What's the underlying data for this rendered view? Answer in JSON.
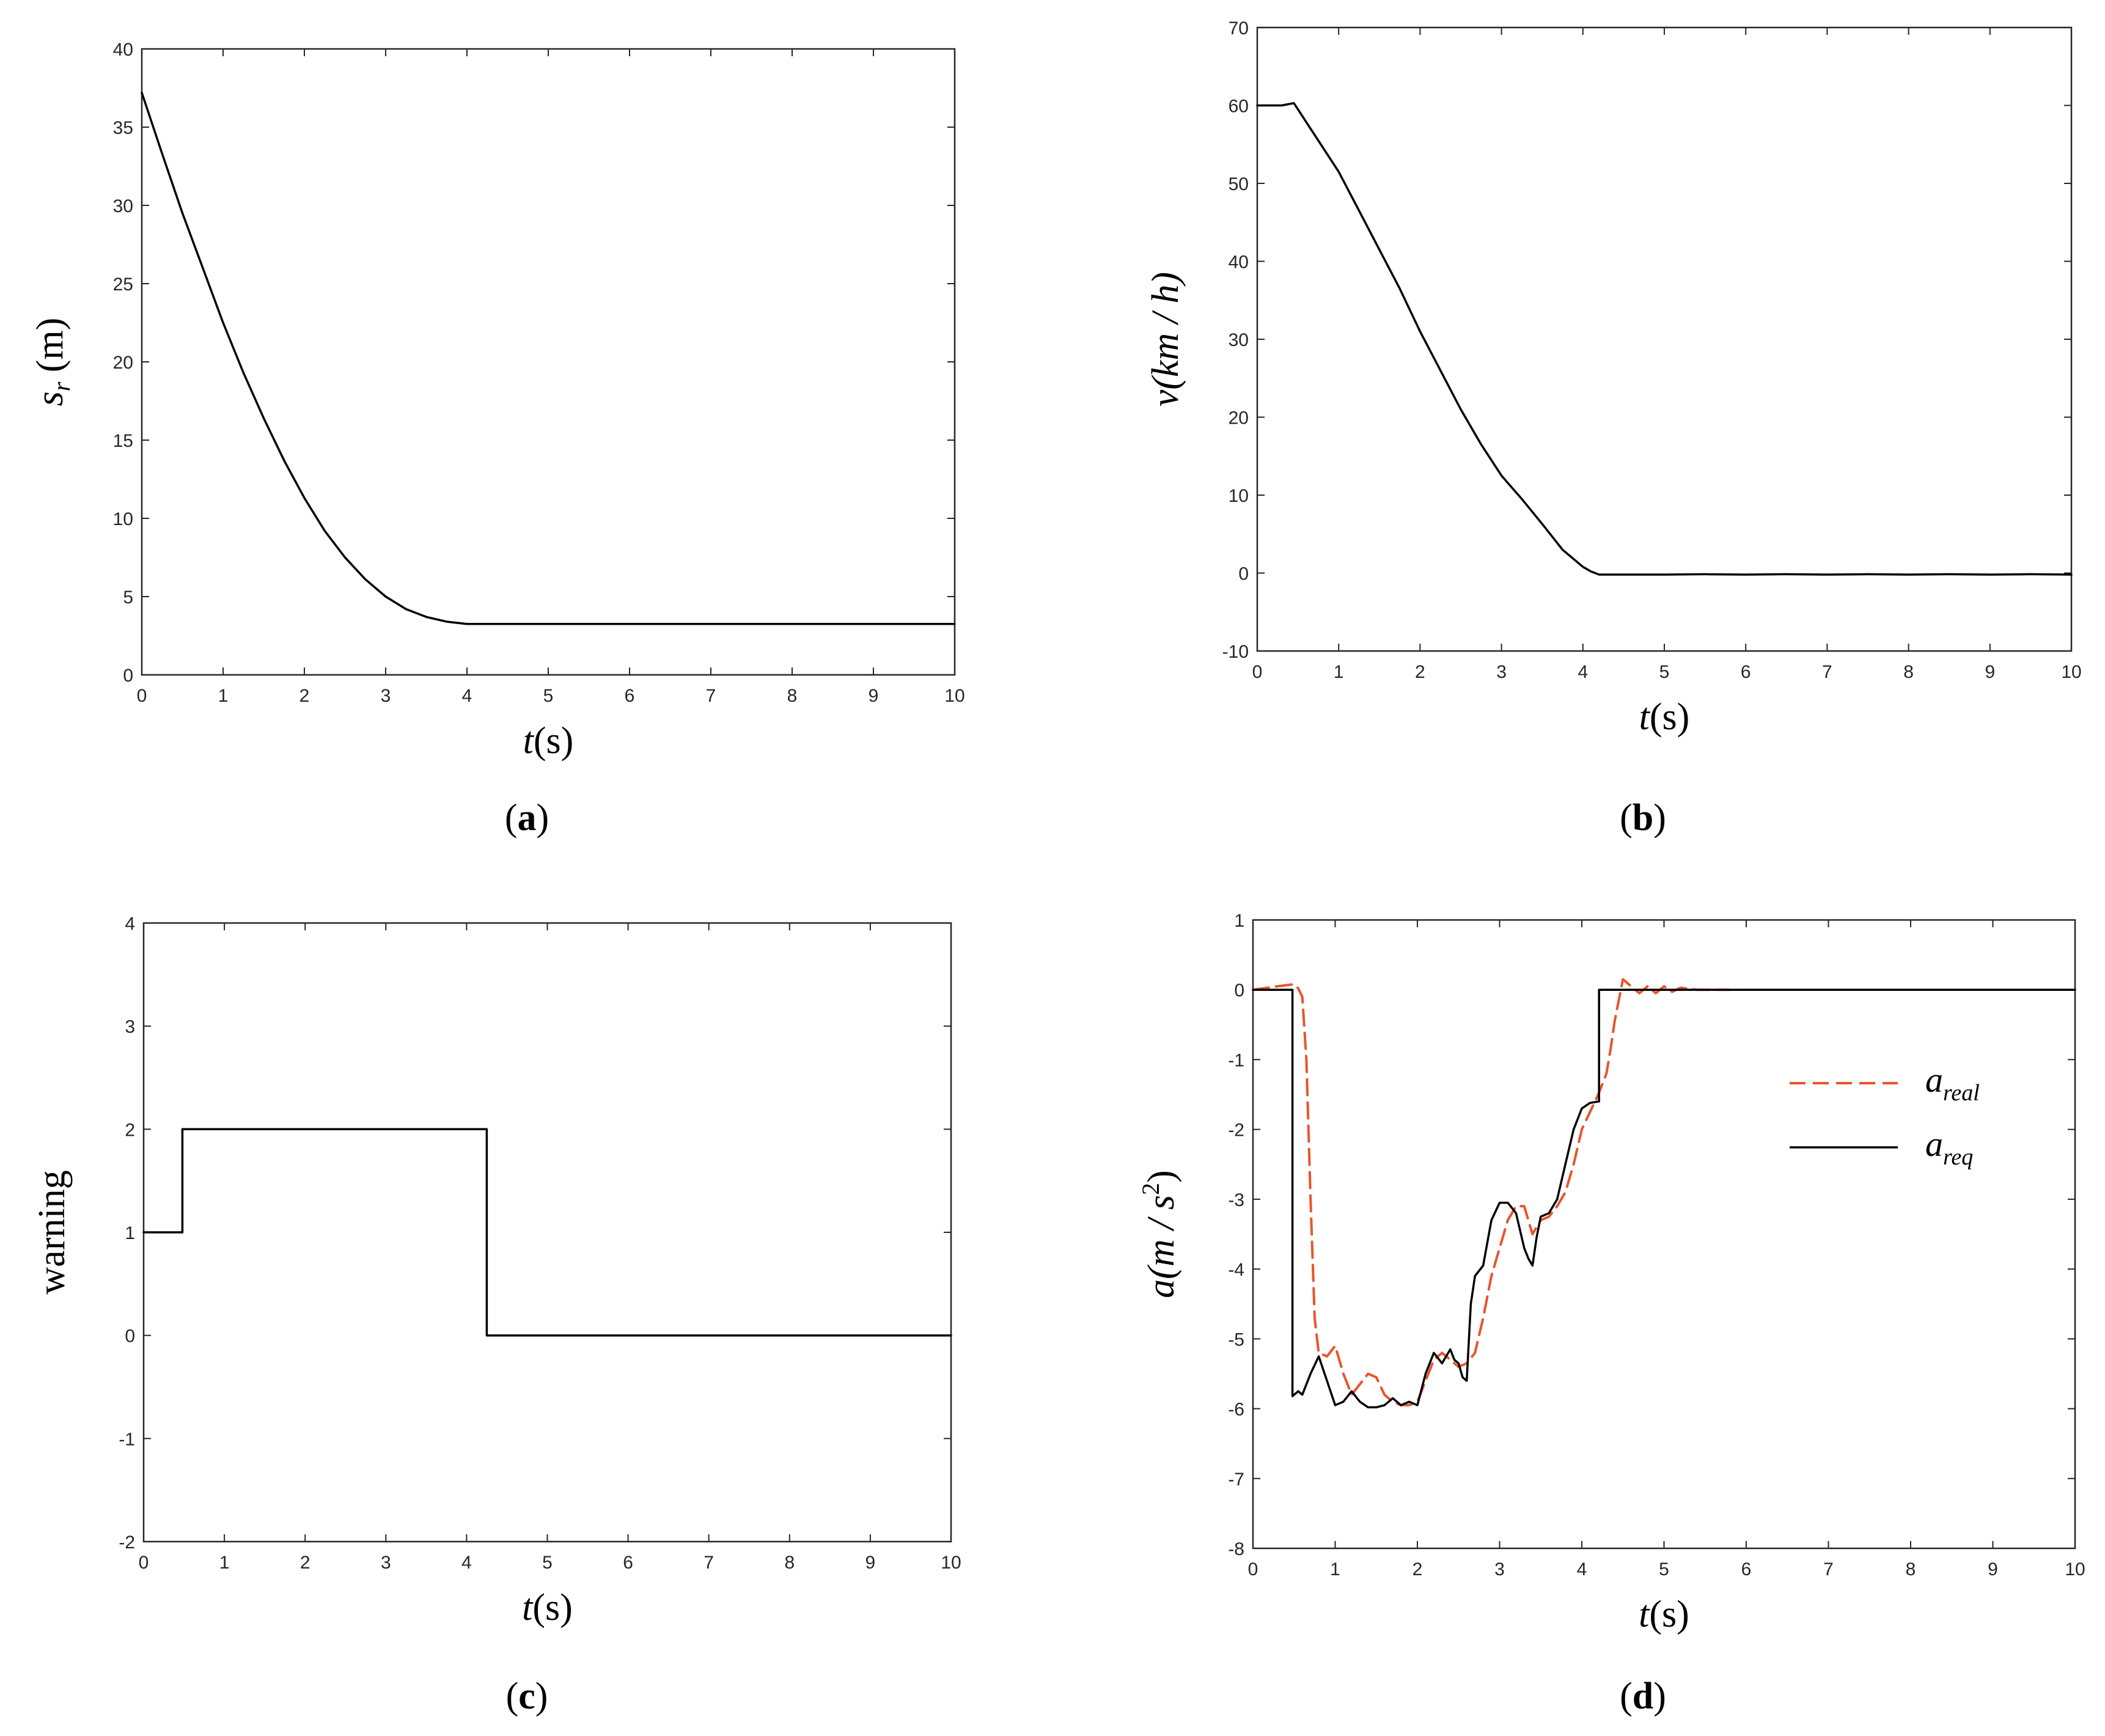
{
  "chart_data": [
    {
      "id": "a",
      "type": "line",
      "panel_label": "a",
      "xlabel": "t",
      "xlabel_unit": "(s)",
      "ylabel": "s",
      "ylabel_sub": "r",
      "ylabel_unit": "(m)",
      "xlim": [
        0,
        10
      ],
      "ylim": [
        0,
        40
      ],
      "xticks": [
        0,
        1,
        2,
        3,
        4,
        5,
        6,
        7,
        8,
        9,
        10
      ],
      "yticks": [
        0,
        5,
        10,
        15,
        20,
        25,
        30,
        35,
        40
      ],
      "series": [
        {
          "name": "s_r",
          "color": "#000000",
          "style": "solid",
          "x": [
            0,
            0.25,
            0.5,
            0.75,
            1,
            1.25,
            1.5,
            1.75,
            2,
            2.25,
            2.5,
            2.75,
            3,
            3.25,
            3.5,
            3.75,
            4,
            4.5,
            5,
            6,
            7,
            8,
            9,
            10
          ],
          "y": [
            37.2,
            33.3,
            29.5,
            26.0,
            22.5,
            19.3,
            16.4,
            13.7,
            11.3,
            9.2,
            7.5,
            6.1,
            5.0,
            4.2,
            3.7,
            3.4,
            3.25,
            3.25,
            3.25,
            3.25,
            3.25,
            3.25,
            3.25,
            3.25
          ]
        }
      ]
    },
    {
      "id": "b",
      "type": "line",
      "panel_label": "b",
      "xlabel": "t",
      "xlabel_unit": "(s)",
      "ylabel": "v(km / h)",
      "xlim": [
        0,
        10
      ],
      "ylim": [
        -10,
        70
      ],
      "xticks": [
        0,
        1,
        2,
        3,
        4,
        5,
        6,
        7,
        8,
        9,
        10
      ],
      "yticks": [
        -10,
        0,
        10,
        20,
        30,
        40,
        50,
        60,
        70
      ],
      "series": [
        {
          "name": "v",
          "color": "#000000",
          "style": "solid",
          "x": [
            0,
            0.3,
            0.45,
            0.5,
            0.75,
            1,
            1.25,
            1.5,
            1.75,
            2,
            2.25,
            2.5,
            2.75,
            3,
            3.25,
            3.5,
            3.75,
            4,
            4.1,
            4.2,
            4.5,
            5,
            5.5,
            6,
            6.5,
            7,
            7.5,
            8,
            8.5,
            9,
            9.5,
            10
          ],
          "y": [
            60,
            60,
            60.3,
            59.5,
            55.5,
            51.5,
            46.5,
            41.5,
            36.5,
            31,
            26,
            21,
            16.5,
            12.5,
            9.5,
            6.3,
            3,
            0.8,
            0.2,
            -0.2,
            -0.2,
            -0.2,
            -0.15,
            -0.2,
            -0.15,
            -0.2,
            -0.15,
            -0.2,
            -0.15,
            -0.2,
            -0.15,
            -0.2
          ]
        }
      ]
    },
    {
      "id": "c",
      "type": "line",
      "panel_label": "c",
      "xlabel": "t",
      "xlabel_unit": "(s)",
      "ylabel": "warning",
      "xlim": [
        0,
        10
      ],
      "ylim": [
        -2,
        4
      ],
      "xticks": [
        0,
        1,
        2,
        3,
        4,
        5,
        6,
        7,
        8,
        9,
        10
      ],
      "yticks": [
        -2,
        -1,
        0,
        1,
        2,
        3,
        4
      ],
      "series": [
        {
          "name": "warning",
          "color": "#000000",
          "style": "solid",
          "x": [
            0,
            0.48,
            0.48,
            4.25,
            4.25,
            10
          ],
          "y": [
            1,
            1,
            2,
            2,
            0,
            0
          ]
        }
      ]
    },
    {
      "id": "d",
      "type": "line",
      "panel_label": "d",
      "xlabel": "t",
      "xlabel_unit": "(s)",
      "ylabel": "a(m / s",
      "ylabel_sup": "2",
      "ylabel_close": ")",
      "xlim": [
        0,
        10
      ],
      "ylim": [
        -8,
        1
      ],
      "xticks": [
        0,
        1,
        2,
        3,
        4,
        5,
        6,
        7,
        8,
        9,
        10
      ],
      "yticks": [
        -8,
        -7,
        -6,
        -5,
        -4,
        -3,
        -2,
        -1,
        0,
        1
      ],
      "legend": {
        "position": "upper-right",
        "entries": [
          {
            "label": "a",
            "sub": "real"
          },
          {
            "label": "a",
            "sub": "req"
          }
        ]
      },
      "series": [
        {
          "name": "a_real",
          "color": "#e8552b",
          "style": "dashed",
          "x": [
            0,
            0.3,
            0.5,
            0.55,
            0.6,
            0.65,
            0.7,
            0.75,
            0.8,
            0.9,
            1.0,
            1.1,
            1.2,
            1.3,
            1.4,
            1.5,
            1.6,
            1.7,
            1.8,
            1.9,
            2.0,
            2.1,
            2.2,
            2.3,
            2.4,
            2.5,
            2.6,
            2.7,
            2.8,
            2.9,
            3.0,
            3.1,
            3.2,
            3.3,
            3.4,
            3.5,
            3.6,
            3.7,
            3.8,
            3.9,
            4.0,
            4.1,
            4.2,
            4.3,
            4.35,
            4.4,
            4.45,
            4.5,
            4.6,
            4.7,
            4.8,
            4.9,
            5.0,
            5.1,
            5.2,
            5.4,
            5.6,
            5.8
          ],
          "y": [
            0,
            0.05,
            0.08,
            0.02,
            -0.1,
            -1.0,
            -3.0,
            -4.7,
            -5.2,
            -5.25,
            -5.1,
            -5.5,
            -5.8,
            -5.65,
            -5.5,
            -5.55,
            -5.8,
            -5.9,
            -5.95,
            -5.95,
            -5.9,
            -5.6,
            -5.3,
            -5.2,
            -5.3,
            -5.4,
            -5.35,
            -5.2,
            -4.7,
            -4.1,
            -3.7,
            -3.3,
            -3.1,
            -3.1,
            -3.5,
            -3.3,
            -3.25,
            -3.1,
            -2.9,
            -2.5,
            -2.0,
            -1.75,
            -1.5,
            -1.2,
            -0.85,
            -0.45,
            -0.15,
            0.15,
            0.05,
            -0.05,
            0.05,
            -0.05,
            0.05,
            -0.03,
            0.03,
            0.0,
            0.0,
            0.0
          ]
        },
        {
          "name": "a_req",
          "color": "#000000",
          "style": "solid",
          "x": [
            0,
            0.48,
            0.48,
            0.55,
            0.6,
            0.7,
            0.8,
            0.9,
            1.0,
            1.1,
            1.2,
            1.3,
            1.4,
            1.5,
            1.6,
            1.7,
            1.8,
            1.9,
            2.0,
            2.1,
            2.2,
            2.3,
            2.4,
            2.45,
            2.5,
            2.55,
            2.6,
            2.65,
            2.7,
            2.8,
            2.9,
            3.0,
            3.1,
            3.2,
            3.3,
            3.35,
            3.4,
            3.45,
            3.5,
            3.6,
            3.7,
            3.8,
            3.9,
            4.0,
            4.1,
            4.2,
            4.21,
            4.21,
            5,
            6,
            7,
            8,
            9,
            10
          ],
          "y": [
            0,
            0,
            -5.82,
            -5.75,
            -5.8,
            -5.5,
            -5.25,
            -5.6,
            -5.95,
            -5.9,
            -5.75,
            -5.9,
            -5.98,
            -5.98,
            -5.95,
            -5.85,
            -5.95,
            -5.9,
            -5.95,
            -5.5,
            -5.2,
            -5.35,
            -5.15,
            -5.3,
            -5.35,
            -5.55,
            -5.6,
            -4.5,
            -4.1,
            -3.95,
            -3.3,
            -3.05,
            -3.05,
            -3.2,
            -3.7,
            -3.85,
            -3.95,
            -3.55,
            -3.25,
            -3.2,
            -3.0,
            -2.5,
            -2.0,
            -1.7,
            -1.62,
            -1.6,
            -1.6,
            0,
            0,
            0,
            0,
            0,
            0,
            0
          ]
        }
      ]
    }
  ]
}
